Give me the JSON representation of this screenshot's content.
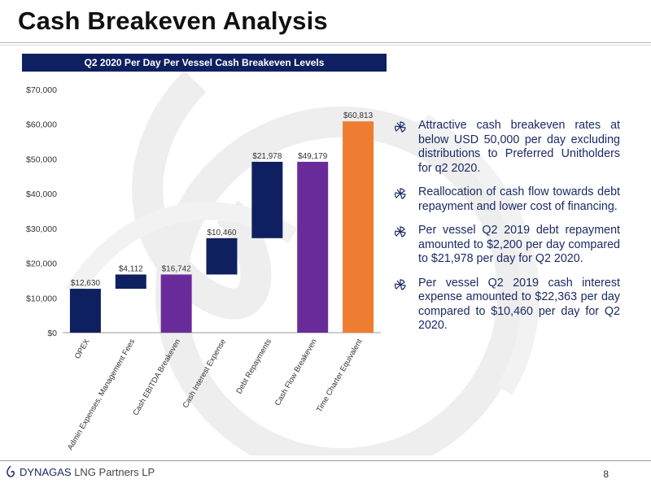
{
  "page": {
    "title": "Cash Breakeven Analysis",
    "page_number": "8",
    "company": "DYNAGAS",
    "company_suffix": " LNG Partners LP"
  },
  "chart_data": {
    "type": "bar",
    "subtype": "waterfall",
    "title": "Q2 2020 Per Day Per Vessel Cash Breakeven Levels",
    "categories": [
      "OPEX",
      "Admin Expenses, Management Fees",
      "Cash EBITDA Breakeven",
      "Cash Interest Expense",
      "Debt Repayments",
      "Cash Flow Breakeven",
      "Time Charter Equivalent"
    ],
    "values": [
      12630,
      4112,
      16742,
      10460,
      21978,
      49179,
      60813
    ],
    "bases": [
      0,
      12630,
      0,
      16742,
      27202,
      0,
      0
    ],
    "data_labels": [
      "$12,630",
      "$4,112",
      "$16,742",
      "$10,460",
      "$21,978",
      "$49,179",
      "$60,813"
    ],
    "colors": [
      "#0f2060",
      "#0f2060",
      "#6a2b9a",
      "#0f2060",
      "#0f2060",
      "#6a2b9a",
      "#ee7d31"
    ],
    "ylim": [
      0,
      70000
    ],
    "yticks": [
      0,
      10000,
      20000,
      30000,
      40000,
      50000,
      60000,
      70000
    ],
    "ytick_labels": [
      "$0",
      "$10,000",
      "$20,000",
      "$30,000",
      "$40,000",
      "$50,000",
      "$60,000",
      "$70,000"
    ],
    "grid": false,
    "legend": "none"
  },
  "bullets": [
    {
      "icon": "pinwheel-icon",
      "text": "Attractive cash breakeven rates at below USD 50,000 per day excluding distributions to Preferred Unitholders for q2 2020."
    },
    {
      "icon": "pinwheel-icon",
      "text": "Reallocation of cash flow towards debt repayment and lower cost of financing."
    },
    {
      "icon": "pinwheel-icon",
      "text": "Per vessel Q2 2019 debt repayment amounted to $2,200 per day compared to $21,978 per day for Q2 2020."
    },
    {
      "icon": "pinwheel-icon",
      "text": "Per vessel Q2 2019 cash interest expense amounted to $22,363 per day compared to $10,460 per day for Q2 2020."
    }
  ]
}
